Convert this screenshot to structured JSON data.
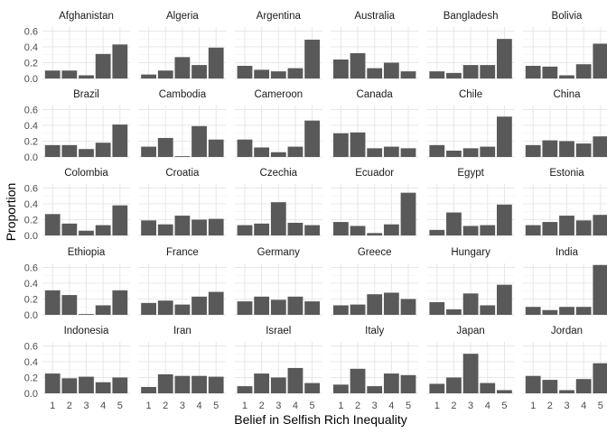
{
  "chart_data": {
    "type": "bar",
    "layout": "facet-grid",
    "xlabel": "Belief in Selfish Rich Inequality",
    "ylabel": "Proportion",
    "categories": [
      "1",
      "2",
      "3",
      "4",
      "5"
    ],
    "y_ticks": [
      "0.0",
      "0.2",
      "0.4",
      "0.6"
    ],
    "ylim": [
      0,
      0.65
    ],
    "grid": true,
    "bar_color": "#595959",
    "facets": [
      {
        "name": "Afghanistan",
        "values": [
          0.1,
          0.1,
          0.04,
          0.31,
          0.43
        ]
      },
      {
        "name": "Algeria",
        "values": [
          0.05,
          0.1,
          0.27,
          0.17,
          0.39
        ]
      },
      {
        "name": "Argentina",
        "values": [
          0.16,
          0.11,
          0.09,
          0.13,
          0.49
        ]
      },
      {
        "name": "Australia",
        "values": [
          0.24,
          0.32,
          0.13,
          0.2,
          0.09
        ]
      },
      {
        "name": "Bangladesh",
        "values": [
          0.09,
          0.07,
          0.17,
          0.17,
          0.5
        ]
      },
      {
        "name": "Bolivia",
        "values": [
          0.16,
          0.15,
          0.04,
          0.18,
          0.44
        ]
      },
      {
        "name": "Brazil",
        "values": [
          0.15,
          0.15,
          0.1,
          0.18,
          0.41
        ]
      },
      {
        "name": "Cambodia",
        "values": [
          0.13,
          0.24,
          0.01,
          0.39,
          0.22
        ]
      },
      {
        "name": "Cameroon",
        "values": [
          0.22,
          0.12,
          0.06,
          0.13,
          0.46
        ]
      },
      {
        "name": "Canada",
        "values": [
          0.3,
          0.31,
          0.11,
          0.13,
          0.11
        ]
      },
      {
        "name": "Chile",
        "values": [
          0.15,
          0.08,
          0.11,
          0.13,
          0.51
        ]
      },
      {
        "name": "China",
        "values": [
          0.15,
          0.21,
          0.2,
          0.17,
          0.26
        ]
      },
      {
        "name": "Colombia",
        "values": [
          0.27,
          0.15,
          0.06,
          0.13,
          0.38
        ]
      },
      {
        "name": "Croatia",
        "values": [
          0.19,
          0.14,
          0.25,
          0.2,
          0.21
        ]
      },
      {
        "name": "Czechia",
        "values": [
          0.13,
          0.15,
          0.42,
          0.16,
          0.13
        ]
      },
      {
        "name": "Ecuador",
        "values": [
          0.17,
          0.12,
          0.03,
          0.14,
          0.54
        ]
      },
      {
        "name": "Egypt",
        "values": [
          0.07,
          0.29,
          0.12,
          0.13,
          0.39
        ]
      },
      {
        "name": "Estonia",
        "values": [
          0.13,
          0.17,
          0.25,
          0.19,
          0.26
        ]
      },
      {
        "name": "Ethiopia",
        "values": [
          0.31,
          0.25,
          0.01,
          0.12,
          0.31
        ]
      },
      {
        "name": "France",
        "values": [
          0.15,
          0.18,
          0.13,
          0.23,
          0.29
        ]
      },
      {
        "name": "Germany",
        "values": [
          0.17,
          0.23,
          0.19,
          0.23,
          0.17
        ]
      },
      {
        "name": "Greece",
        "values": [
          0.12,
          0.13,
          0.26,
          0.28,
          0.2
        ]
      },
      {
        "name": "Hungary",
        "values": [
          0.16,
          0.07,
          0.27,
          0.12,
          0.38
        ]
      },
      {
        "name": "India",
        "values": [
          0.1,
          0.06,
          0.1,
          0.1,
          0.63
        ]
      },
      {
        "name": "Indonesia",
        "values": [
          0.25,
          0.19,
          0.21,
          0.14,
          0.2
        ]
      },
      {
        "name": "Iran",
        "values": [
          0.08,
          0.24,
          0.22,
          0.22,
          0.21
        ]
      },
      {
        "name": "Israel",
        "values": [
          0.09,
          0.25,
          0.2,
          0.32,
          0.13
        ]
      },
      {
        "name": "Italy",
        "values": [
          0.11,
          0.31,
          0.09,
          0.25,
          0.23
        ]
      },
      {
        "name": "Japan",
        "values": [
          0.12,
          0.2,
          0.5,
          0.13,
          0.04
        ]
      },
      {
        "name": "Jordan",
        "values": [
          0.22,
          0.17,
          0.04,
          0.18,
          0.38
        ]
      }
    ]
  }
}
